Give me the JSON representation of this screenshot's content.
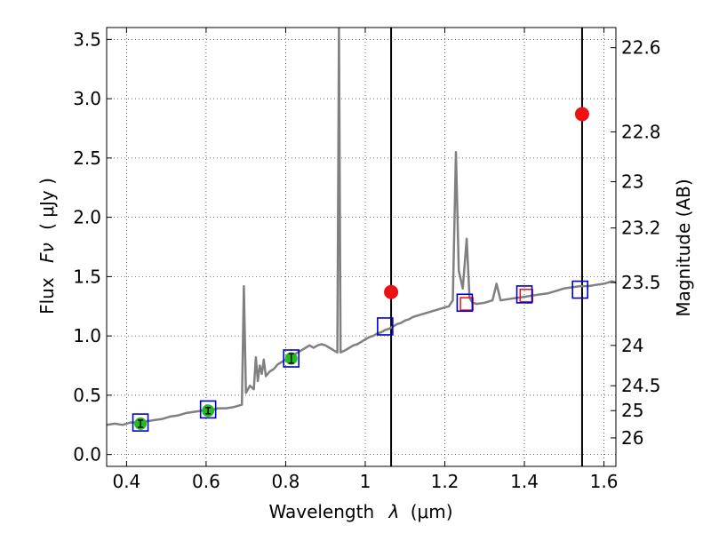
{
  "chart_data": {
    "type": "line",
    "title": "",
    "xlabel_text": "Wavelength",
    "xlabel_symbol": "λ",
    "xlabel_unit": "(μm)",
    "ylabel_text": "Flux",
    "ylabel_symbol": "Fν",
    "ylabel_unit": "( μJy )",
    "y2label": "Magnitude (AB)",
    "xlim": [
      0.35,
      1.63
    ],
    "ylim": [
      -0.1,
      3.6
    ],
    "grid": true,
    "xticks": [
      0.4,
      0.6,
      0.8,
      1.0,
      1.2,
      1.4,
      1.6
    ],
    "xtick_labels": [
      "0.4",
      "0.6",
      "0.8",
      "1",
      "1.2",
      "1.4",
      "1.6"
    ],
    "yticks": [
      0.0,
      0.5,
      1.0,
      1.5,
      2.0,
      2.5,
      3.0,
      3.5
    ],
    "ytick_labels": [
      "0.0",
      "0.5",
      "1.0",
      "1.5",
      "2.0",
      "2.5",
      "3.0",
      "3.5"
    ],
    "y2ticks": [
      {
        "flux": 3.43,
        "label": "22.6"
      },
      {
        "flux": 2.72,
        "label": "22.8"
      },
      {
        "flux": 2.3,
        "label": "23"
      },
      {
        "flux": 1.91,
        "label": "23.2"
      },
      {
        "flux": 1.45,
        "label": "23.5"
      },
      {
        "flux": 0.92,
        "label": "24"
      },
      {
        "flux": 0.58,
        "label": "24.5"
      },
      {
        "flux": 0.37,
        "label": "25"
      },
      {
        "flux": 0.14,
        "label": "26"
      }
    ],
    "vertical_lines": [
      1.065,
      1.545
    ],
    "colors": {
      "model": "#808080",
      "model_square": "#0000cc",
      "observed": "#22bb22",
      "upper_limit": "#ee1111",
      "error_bar": "#000000"
    },
    "series": [
      {
        "kind": "model_spectrum",
        "points": [
          [
            0.35,
            0.25
          ],
          [
            0.37,
            0.26
          ],
          [
            0.39,
            0.25
          ],
          [
            0.41,
            0.27
          ],
          [
            0.43,
            0.27
          ],
          [
            0.45,
            0.28
          ],
          [
            0.47,
            0.29
          ],
          [
            0.49,
            0.3
          ],
          [
            0.51,
            0.32
          ],
          [
            0.53,
            0.33
          ],
          [
            0.55,
            0.35
          ],
          [
            0.57,
            0.36
          ],
          [
            0.59,
            0.37
          ],
          [
            0.61,
            0.37
          ],
          [
            0.63,
            0.39
          ],
          [
            0.65,
            0.39
          ],
          [
            0.67,
            0.4
          ],
          [
            0.69,
            0.42
          ],
          [
            0.695,
            1.42
          ],
          [
            0.7,
            0.52
          ],
          [
            0.71,
            0.58
          ],
          [
            0.72,
            0.55
          ],
          [
            0.725,
            0.82
          ],
          [
            0.73,
            0.62
          ],
          [
            0.735,
            0.75
          ],
          [
            0.74,
            0.68
          ],
          [
            0.745,
            0.8
          ],
          [
            0.75,
            0.66
          ],
          [
            0.76,
            0.7
          ],
          [
            0.77,
            0.72
          ],
          [
            0.78,
            0.76
          ],
          [
            0.79,
            0.78
          ],
          [
            0.8,
            0.8
          ],
          [
            0.81,
            0.82
          ],
          [
            0.82,
            0.84
          ],
          [
            0.83,
            0.86
          ],
          [
            0.84,
            0.88
          ],
          [
            0.85,
            0.9
          ],
          [
            0.86,
            0.92
          ],
          [
            0.87,
            0.9
          ],
          [
            0.88,
            0.92
          ],
          [
            0.89,
            0.93
          ],
          [
            0.9,
            0.92
          ],
          [
            0.91,
            0.9
          ],
          [
            0.92,
            0.88
          ],
          [
            0.93,
            0.86
          ],
          [
            0.934,
            3.6
          ],
          [
            0.938,
            0.86
          ],
          [
            0.95,
            0.88
          ],
          [
            0.96,
            0.9
          ],
          [
            0.97,
            0.92
          ],
          [
            0.98,
            0.93
          ],
          [
            0.99,
            0.95
          ],
          [
            1.0,
            0.97
          ],
          [
            1.01,
            0.99
          ],
          [
            1.02,
            1.0
          ],
          [
            1.03,
            1.02
          ],
          [
            1.04,
            1.03
          ],
          [
            1.05,
            1.05
          ],
          [
            1.06,
            1.06
          ],
          [
            1.07,
            1.08
          ],
          [
            1.08,
            1.1
          ],
          [
            1.09,
            1.11
          ],
          [
            1.1,
            1.13
          ],
          [
            1.11,
            1.14
          ],
          [
            1.12,
            1.16
          ],
          [
            1.13,
            1.17
          ],
          [
            1.14,
            1.18
          ],
          [
            1.15,
            1.19
          ],
          [
            1.16,
            1.2
          ],
          [
            1.17,
            1.21
          ],
          [
            1.18,
            1.22
          ],
          [
            1.19,
            1.23
          ],
          [
            1.2,
            1.24
          ],
          [
            1.21,
            1.25
          ],
          [
            1.22,
            1.3
          ],
          [
            1.228,
            2.55
          ],
          [
            1.235,
            1.55
          ],
          [
            1.245,
            1.4
          ],
          [
            1.255,
            1.82
          ],
          [
            1.262,
            1.32
          ],
          [
            1.27,
            1.28
          ],
          [
            1.28,
            1.27
          ],
          [
            1.3,
            1.28
          ],
          [
            1.32,
            1.3
          ],
          [
            1.33,
            1.44
          ],
          [
            1.34,
            1.3
          ],
          [
            1.36,
            1.31
          ],
          [
            1.38,
            1.32
          ],
          [
            1.4,
            1.33
          ],
          [
            1.42,
            1.34
          ],
          [
            1.44,
            1.35
          ],
          [
            1.46,
            1.36
          ],
          [
            1.48,
            1.38
          ],
          [
            1.5,
            1.4
          ],
          [
            1.52,
            1.41
          ],
          [
            1.54,
            1.42
          ],
          [
            1.56,
            1.42
          ],
          [
            1.58,
            1.43
          ],
          [
            1.6,
            1.44
          ],
          [
            1.62,
            1.46
          ],
          [
            1.63,
            1.45
          ]
        ]
      },
      {
        "kind": "model_photometry",
        "points": [
          [
            0.435,
            0.27
          ],
          [
            0.605,
            0.38
          ],
          [
            0.814,
            0.81
          ],
          [
            1.05,
            1.08
          ],
          [
            1.25,
            1.28
          ],
          [
            1.4,
            1.35
          ],
          [
            1.54,
            1.39
          ]
        ]
      },
      {
        "kind": "observed_photometry",
        "points": [
          [
            0.435,
            0.26,
            0.03
          ],
          [
            0.605,
            0.37,
            0.02
          ],
          [
            0.814,
            0.81,
            0.04
          ]
        ]
      },
      {
        "kind": "upper_limits",
        "points": [
          [
            1.065,
            1.37
          ],
          [
            1.545,
            2.87
          ]
        ]
      },
      {
        "kind": "upper_limit_squares",
        "points": [
          [
            1.255,
            1.27
          ],
          [
            1.405,
            1.34
          ]
        ]
      }
    ]
  }
}
